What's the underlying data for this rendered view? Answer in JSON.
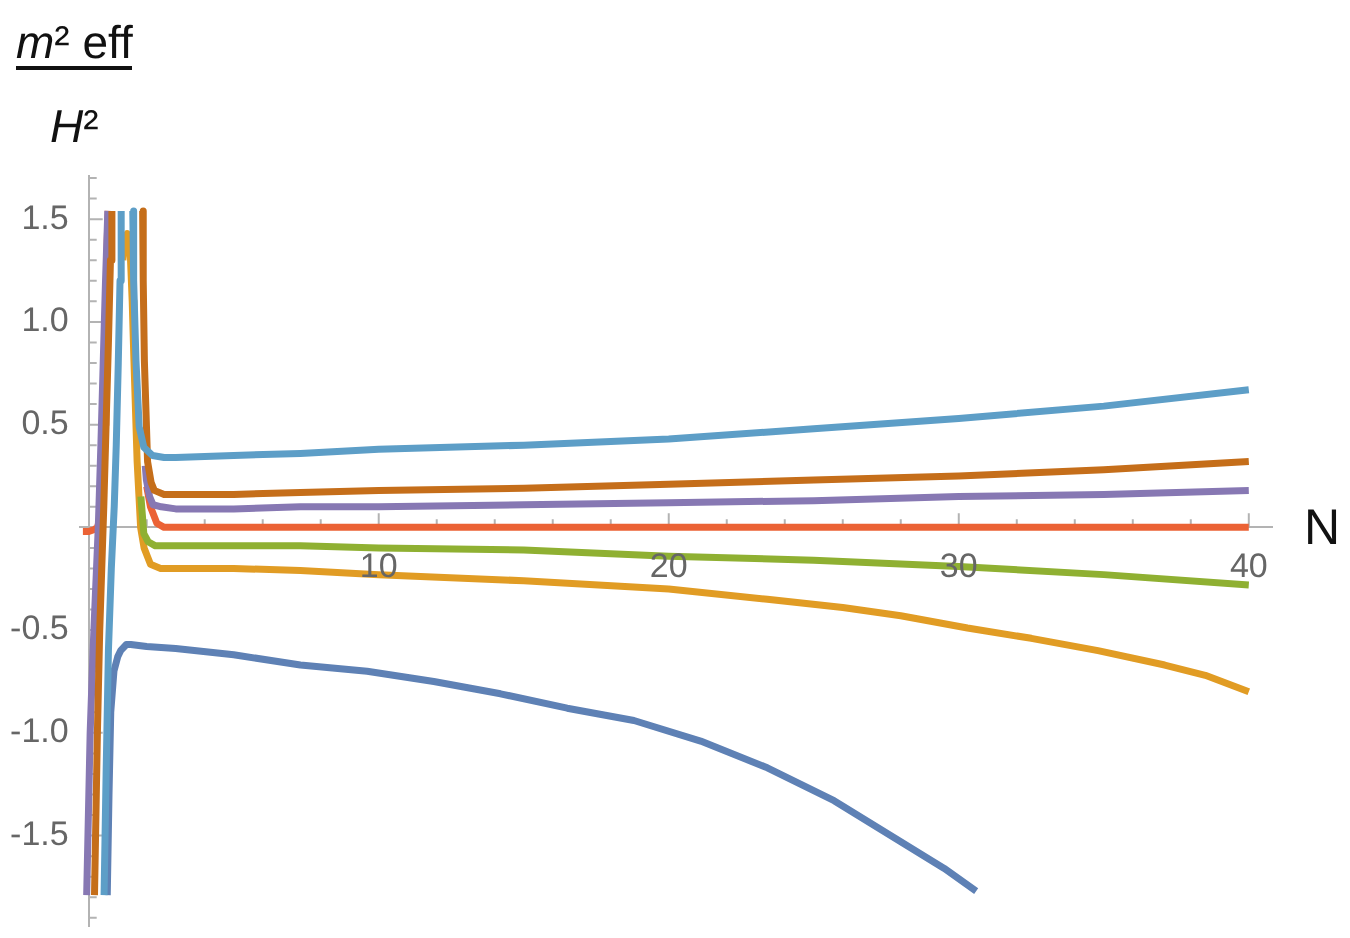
{
  "chart_data": {
    "type": "line",
    "xlabel": "N",
    "ylabel": "m² eff\nH²",
    "marker": "none",
    "line_style": "solid",
    "xlim": [
      -0.3,
      40.8
    ],
    "ylim": [
      -1.94,
      1.71
    ],
    "xticks": [
      {
        "value": 2,
        "label": null
      },
      {
        "value": 4,
        "label": null
      },
      {
        "value": 6,
        "label": null
      },
      {
        "value": 8,
        "label": null
      },
      10,
      {
        "value": 12,
        "label": null
      },
      {
        "value": 14,
        "label": null
      },
      {
        "value": 16,
        "label": null
      },
      {
        "value": 18,
        "label": null
      },
      20,
      {
        "value": 22,
        "label": null
      },
      {
        "value": 24,
        "label": null
      },
      {
        "value": 26,
        "label": null
      },
      {
        "value": 28,
        "label": null
      },
      30,
      {
        "value": 32,
        "label": null
      },
      {
        "value": 34,
        "label": null
      },
      {
        "value": 36,
        "label": null
      },
      {
        "value": 38,
        "label": null
      },
      40
    ],
    "yticks": [
      {
        "value": -1.9,
        "label": null
      },
      {
        "value": -1.8,
        "label": null
      },
      {
        "value": -1.7,
        "label": null
      },
      {
        "value": -1.6,
        "label": null
      },
      -1.5,
      {
        "value": -1.4,
        "label": null
      },
      {
        "value": -1.3,
        "label": null
      },
      {
        "value": -1.2,
        "label": null
      },
      {
        "value": -1.1,
        "label": null
      },
      {
        "value": -1,
        "label": "-1.0"
      },
      {
        "value": -0.9,
        "label": null
      },
      {
        "value": -0.8,
        "label": null
      },
      {
        "value": -0.7,
        "label": null
      },
      {
        "value": -0.6,
        "label": null
      },
      -0.5,
      {
        "value": -0.4,
        "label": null
      },
      {
        "value": -0.3,
        "label": null
      },
      {
        "value": -0.2,
        "label": null
      },
      {
        "value": -0.1,
        "label": null
      },
      {
        "value": 0.1,
        "label": null
      },
      {
        "value": 0.2,
        "label": null
      },
      {
        "value": 0.3,
        "label": null
      },
      {
        "value": 0.4,
        "label": null
      },
      0.5,
      {
        "value": 0.6,
        "label": null
      },
      {
        "value": 0.7,
        "label": null
      },
      {
        "value": 0.8,
        "label": null
      },
      {
        "value": 0.9,
        "label": null
      },
      {
        "value": 1,
        "label": "1.0"
      },
      {
        "value": 1.1,
        "label": null
      },
      {
        "value": 1.2,
        "label": null
      },
      {
        "value": 1.3,
        "label": null
      },
      {
        "value": 1.4,
        "label": null
      },
      1.5,
      {
        "value": 1.6,
        "label": null
      },
      {
        "value": 1.7,
        "label": null
      }
    ],
    "series": [
      {
        "color": "#5e81b5",
        "x": [
          0.64,
          0.7,
          0.76,
          0.87,
          1.0,
          1.1,
          1.3,
          1.45,
          2,
          3,
          5,
          7.3,
          9.6,
          11.9,
          14.2,
          16.5,
          18.8,
          21.1,
          23.4,
          25.7,
          28,
          29.5,
          30.6
        ],
        "values": [
          -1.79,
          -1.3,
          -0.9,
          -0.7,
          -0.63,
          -0.6,
          -0.57,
          -0.57,
          -0.58,
          -0.59,
          -0.62,
          -0.67,
          -0.7,
          -0.75,
          -0.81,
          -0.88,
          -0.94,
          -1.04,
          -1.17,
          -1.33,
          -1.53,
          -1.66,
          -1.77
        ]
      },
      {
        "color": "#e19c24",
        "x": [
          1.18,
          1.25,
          1.33,
          1.42,
          1.5,
          1.56,
          1.67,
          1.79,
          1.91,
          2.13,
          2.48,
          3,
          5,
          7.3,
          10,
          15,
          20,
          23.4,
          26,
          28,
          30.3,
          32.5,
          34.8,
          37.1,
          38.5,
          40
        ],
        "values": [
          1.3,
          1.4,
          1.43,
          1.38,
          1.1,
          0.81,
          0.32,
          0,
          -0.1,
          -0.18,
          -0.2,
          -0.2,
          -0.2,
          -0.21,
          -0.23,
          -0.26,
          -0.3,
          -0.35,
          -0.39,
          -0.43,
          -0.49,
          -0.54,
          -0.6,
          -0.67,
          -0.72,
          -0.8
        ]
      },
      {
        "color": "#8fb032",
        "x": [
          1.8,
          1.9,
          2.05,
          2.3,
          3,
          5,
          7.3,
          10,
          15,
          20,
          25,
          30,
          35,
          40
        ],
        "values": [
          0.15,
          -0.03,
          -0.07,
          -0.09,
          -0.09,
          -0.09,
          -0.09,
          -0.1,
          -0.11,
          -0.14,
          -0.16,
          -0.19,
          -0.23,
          -0.28
        ]
      },
      {
        "color": "#eb6235",
        "x": [
          -0.2,
          0,
          0.2,
          0.3,
          0.4,
          0.47,
          0.53,
          0.59,
          0.64,
          0.67,
          1.0,
          2.0,
          2.13,
          2.35,
          2.6,
          3,
          10,
          20,
          30,
          40
        ],
        "values": [
          -0.02,
          -0.02,
          -0.01,
          0,
          0.05,
          0.2,
          0.5,
          1.0,
          1.4,
          1.54,
          null,
          0.2,
          0.1,
          0.02,
          0,
          0,
          0,
          0,
          0,
          0
        ]
      },
      {
        "color": "#8778b3",
        "x": [
          -0.07,
          0.05,
          0.15,
          0.23,
          0.33,
          0.42,
          0.5,
          0.58,
          0.66,
          1.2,
          1.95,
          1.99,
          2.1,
          2.22,
          2.5,
          3,
          5,
          7.3,
          10,
          15,
          20,
          25,
          30,
          35,
          40
        ],
        "values": [
          -1.79,
          -1.0,
          -0.6,
          -0.33,
          0,
          0.4,
          0.8,
          1.2,
          1.54,
          null,
          0.3,
          0.23,
          0.15,
          0.11,
          0.1,
          0.09,
          0.09,
          0.1,
          0.1,
          0.11,
          0.12,
          0.13,
          0.15,
          0.16,
          0.18
        ]
      },
      {
        "color": "#c56e1a",
        "x": [
          0.2,
          0.3,
          0.38,
          0.45,
          0.52,
          0.6,
          0.68,
          0.75,
          0.8,
          1.3,
          1.86,
          1.88,
          1.92,
          2.03,
          2.15,
          2.26,
          2.6,
          3,
          5,
          7.3,
          10,
          15,
          20,
          25,
          30,
          35,
          40
        ],
        "values": [
          -1.79,
          -1.0,
          -0.5,
          -0.2,
          0.1,
          0.5,
          0.9,
          1.3,
          1.54,
          null,
          1.54,
          1.2,
          0.81,
          0.32,
          0.22,
          0.18,
          0.16,
          0.16,
          0.16,
          0.17,
          0.18,
          0.19,
          0.21,
          0.23,
          0.25,
          0.28,
          0.32
        ]
      },
      {
        "color": "#5d9ec7",
        "x": [
          0.53,
          0.6,
          0.68,
          0.78,
          0.88,
          0.95,
          1.02,
          1.08,
          1.12,
          1.3,
          1.52,
          1.55,
          1.63,
          1.74,
          1.9,
          2.2,
          2.6,
          3,
          5,
          7.3,
          10,
          15,
          20,
          25,
          30,
          35,
          40
        ],
        "values": [
          -1.79,
          -1.2,
          -0.6,
          -0.2,
          0.1,
          0.4,
          0.8,
          1.2,
          1.54,
          null,
          1.54,
          1.2,
          0.81,
          0.49,
          0.39,
          0.35,
          0.34,
          0.34,
          0.35,
          0.36,
          0.38,
          0.4,
          0.43,
          0.48,
          0.53,
          0.59,
          0.67
        ]
      }
    ]
  }
}
